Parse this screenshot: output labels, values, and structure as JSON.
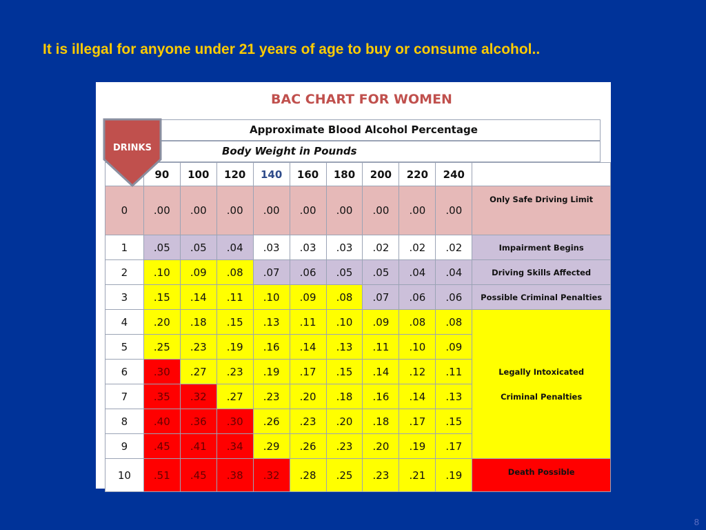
{
  "slide": {
    "title": "It is illegal for anyone under 21 years of age to buy or consume alcohol..",
    "page_number": "8"
  },
  "chart_data": {
    "type": "table",
    "title": "BAC CHART FOR WOMEN",
    "header_line_1": "Approximate Blood Alcohol Percentage",
    "header_line_2": "Body Weight in Pounds",
    "row_header_label": "DRINKS",
    "weights": [
      "90",
      "100",
      "120",
      "140",
      "160",
      "180",
      "200",
      "220",
      "240"
    ],
    "rows": [
      {
        "drinks": "0",
        "values": [
          ".00",
          ".00",
          ".00",
          ".00",
          ".00",
          ".00",
          ".00",
          ".00",
          ".00"
        ]
      },
      {
        "drinks": "1",
        "values": [
          ".05",
          ".05",
          ".04",
          ".03",
          ".03",
          ".03",
          ".02",
          ".02",
          ".02"
        ]
      },
      {
        "drinks": "2",
        "values": [
          ".10",
          ".09",
          ".08",
          ".07",
          ".06",
          ".05",
          ".05",
          ".04",
          ".04"
        ]
      },
      {
        "drinks": "3",
        "values": [
          ".15",
          ".14",
          ".11",
          ".10",
          ".09",
          ".08",
          ".07",
          ".06",
          ".06"
        ]
      },
      {
        "drinks": "4",
        "values": [
          ".20",
          ".18",
          ".15",
          ".13",
          ".11",
          ".10",
          ".09",
          ".08",
          ".08"
        ]
      },
      {
        "drinks": "5",
        "values": [
          ".25",
          ".23",
          ".19",
          ".16",
          ".14",
          ".13",
          ".11",
          ".10",
          ".09"
        ]
      },
      {
        "drinks": "6",
        "values": [
          ".30",
          ".27",
          ".23",
          ".19",
          ".17",
          ".15",
          ".14",
          ".12",
          ".11"
        ]
      },
      {
        "drinks": "7",
        "values": [
          ".35",
          ".32",
          ".27",
          ".23",
          ".20",
          ".18",
          ".16",
          ".14",
          ".13"
        ]
      },
      {
        "drinks": "8",
        "values": [
          ".40",
          ".36",
          ".30",
          ".26",
          ".23",
          ".20",
          ".18",
          ".17",
          ".15"
        ]
      },
      {
        "drinks": "9",
        "values": [
          ".45",
          ".41",
          ".34",
          ".29",
          ".26",
          ".23",
          ".20",
          ".19",
          ".17"
        ]
      },
      {
        "drinks": "10",
        "values": [
          ".51",
          ".45",
          ".38",
          ".32",
          ".28",
          ".25",
          ".23",
          ".21",
          ".19"
        ]
      }
    ],
    "notes": {
      "row0": "Only Safe Driving Limit",
      "row1": "Impairment Begins",
      "row2": "Driving Skills Affected",
      "row3": "Possible Criminal Penalties",
      "rows4to9_line1": "Legally Intoxicated",
      "rows4to9_line2": "Criminal Penalties",
      "row10": "Death Possible"
    },
    "colors": {
      "pink": "#e6b9b8",
      "lavender": "#ccc0da",
      "yellow": "#ffff00",
      "red": "#ff0000",
      "white": "#ffffff"
    },
    "cell_color_codes": [
      [
        "p",
        "p",
        "p",
        "p",
        "p",
        "p",
        "p",
        "p",
        "p"
      ],
      [
        "l",
        "l",
        "l",
        "w",
        "w",
        "w",
        "w",
        "w",
        "w"
      ],
      [
        "y",
        "y",
        "y",
        "l",
        "l",
        "l",
        "l",
        "l",
        "l"
      ],
      [
        "y",
        "y",
        "y",
        "y",
        "y",
        "y",
        "l",
        "l",
        "l"
      ],
      [
        "y",
        "y",
        "y",
        "y",
        "y",
        "y",
        "y",
        "y",
        "y"
      ],
      [
        "y",
        "y",
        "y",
        "y",
        "y",
        "y",
        "y",
        "y",
        "y"
      ],
      [
        "r",
        "y",
        "y",
        "y",
        "y",
        "y",
        "y",
        "y",
        "y"
      ],
      [
        "r",
        "r",
        "y",
        "y",
        "y",
        "y",
        "y",
        "y",
        "y"
      ],
      [
        "r",
        "r",
        "r",
        "y",
        "y",
        "y",
        "y",
        "y",
        "y"
      ],
      [
        "r",
        "r",
        "r",
        "y",
        "y",
        "y",
        "y",
        "y",
        "y"
      ],
      [
        "r",
        "r",
        "r",
        "r",
        "y",
        "y",
        "y",
        "y",
        "y"
      ]
    ]
  }
}
